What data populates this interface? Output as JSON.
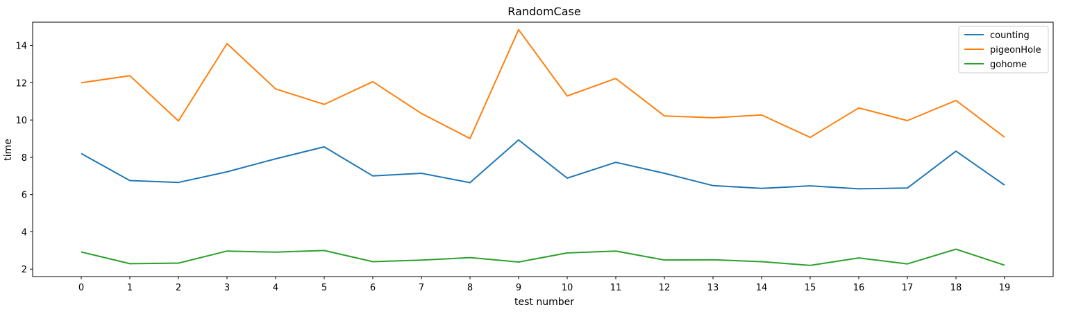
{
  "chart_data": {
    "type": "line",
    "title": "RandomCase",
    "xlabel": "test number",
    "ylabel": "time",
    "x": [
      0,
      1,
      2,
      3,
      4,
      5,
      6,
      7,
      8,
      9,
      10,
      11,
      12,
      13,
      14,
      15,
      16,
      17,
      18,
      19
    ],
    "xlim": [
      -1,
      20
    ],
    "ylim": [
      1.6,
      15.25
    ],
    "yticks": [
      2,
      4,
      6,
      8,
      10,
      12,
      14
    ],
    "grid": false,
    "legend_position": "top-right",
    "series": [
      {
        "name": "counting",
        "color": "#1f77b4",
        "values": [
          8.2,
          6.75,
          6.65,
          7.22,
          7.92,
          8.56,
          7.0,
          7.14,
          6.64,
          8.93,
          6.88,
          7.73,
          7.14,
          6.48,
          6.33,
          6.47,
          6.31,
          6.35,
          8.33,
          6.51
        ]
      },
      {
        "name": "pigeonHole",
        "color": "#ff7f0e",
        "values": [
          12.0,
          12.38,
          9.95,
          14.1,
          11.67,
          10.84,
          12.06,
          10.35,
          9.01,
          14.85,
          11.29,
          12.23,
          10.22,
          10.12,
          10.27,
          9.07,
          10.65,
          9.97,
          11.05,
          9.08
        ]
      },
      {
        "name": "gohome",
        "color": "#2ca02c",
        "values": [
          2.92,
          2.29,
          2.32,
          2.97,
          2.91,
          3.0,
          2.4,
          2.48,
          2.62,
          2.38,
          2.87,
          2.97,
          2.49,
          2.5,
          2.4,
          2.2,
          2.6,
          2.28,
          3.07,
          2.21
        ]
      }
    ]
  }
}
